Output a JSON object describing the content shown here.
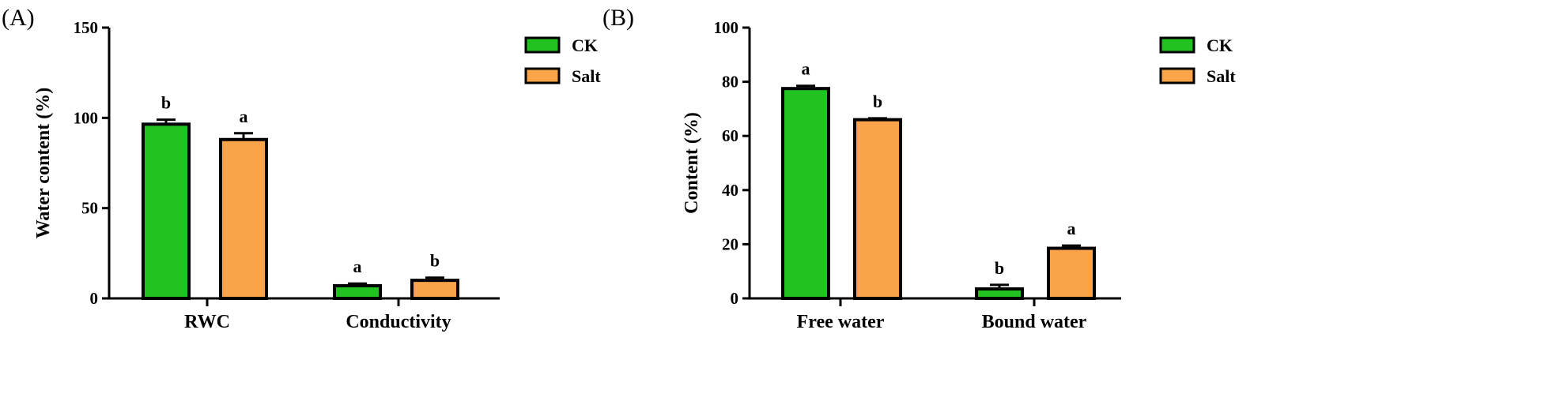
{
  "colors": {
    "CK": "#22c222",
    "Salt": "#fba348",
    "outline": "#000000"
  },
  "chart_data": [
    {
      "type": "bar",
      "panel_label": "(A)",
      "ylabel": "Water content (%)",
      "xlabel": "",
      "ylim": [
        0,
        150
      ],
      "yticks": [
        0,
        50,
        100,
        150
      ],
      "categories": [
        "RWC",
        "Conductivity"
      ],
      "series": [
        {
          "name": "CK",
          "values": [
            96.5,
            7.0
          ],
          "errors": [
            2.5,
            1.2
          ],
          "letters": [
            "b",
            "a"
          ]
        },
        {
          "name": "Salt",
          "values": [
            88.0,
            10.0
          ],
          "errors": [
            3.5,
            1.5
          ],
          "letters": [
            "a",
            "b"
          ]
        }
      ],
      "legend_position": "top-right",
      "grid": false
    },
    {
      "type": "bar",
      "panel_label": "(B)",
      "ylabel": "Content (%)",
      "xlabel": "",
      "ylim": [
        0,
        100
      ],
      "yticks": [
        0,
        20,
        40,
        60,
        80,
        100
      ],
      "categories": [
        "Free water",
        "Bound water"
      ],
      "series": [
        {
          "name": "CK",
          "values": [
            77.5,
            3.5
          ],
          "errors": [
            1.0,
            1.5
          ],
          "letters": [
            "a",
            "b"
          ]
        },
        {
          "name": "Salt",
          "values": [
            66.0,
            18.5
          ],
          "errors": [
            0.5,
            1.0
          ],
          "letters": [
            "b",
            "a"
          ]
        }
      ],
      "legend_position": "top-right",
      "grid": false
    }
  ]
}
